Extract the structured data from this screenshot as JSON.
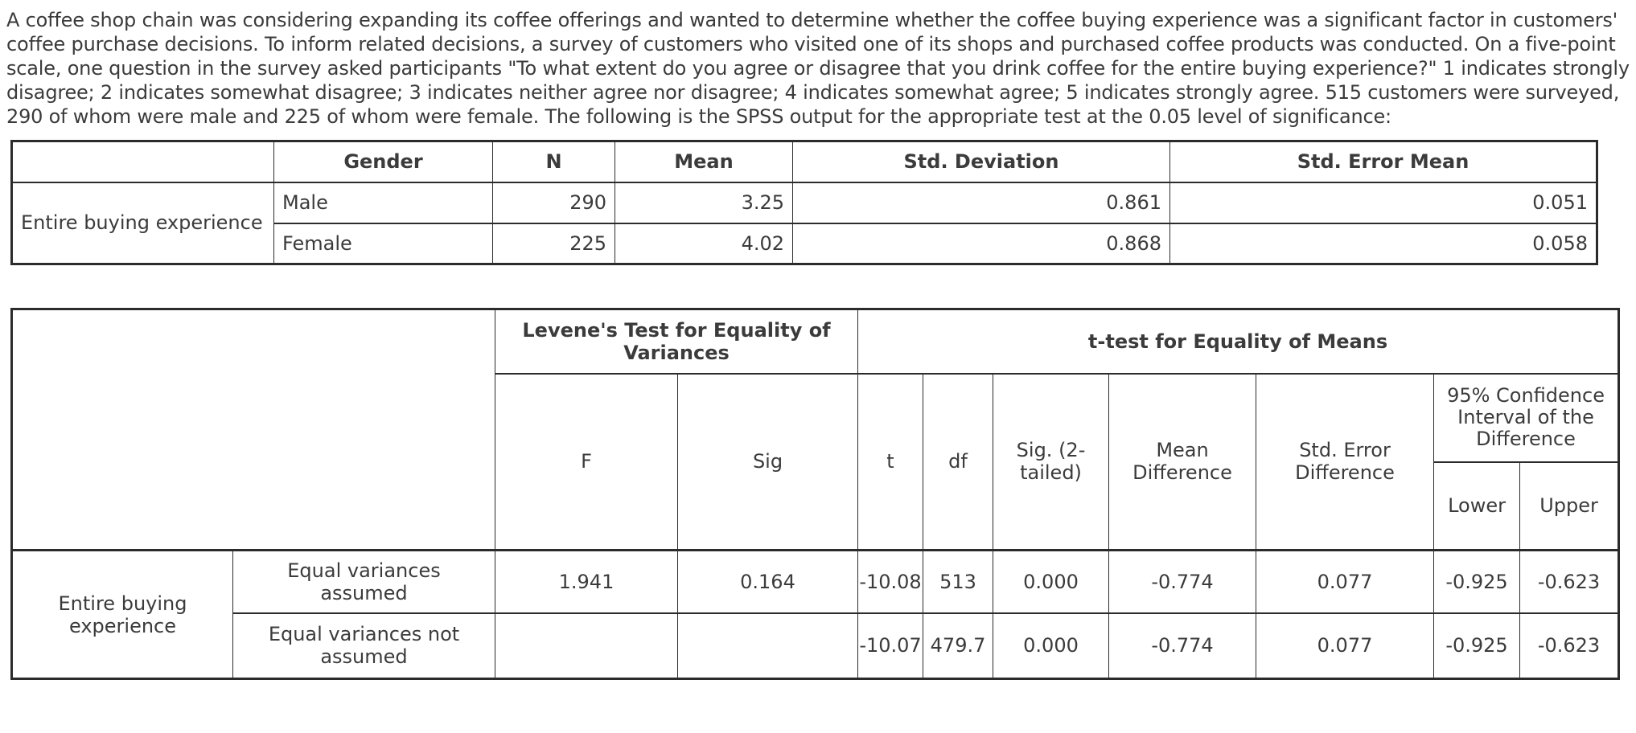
{
  "page": {
    "intro_text": "A coffee shop chain was considering expanding its coffee offerings and wanted to determine whether the coffee buying experience was a significant factor in customers' coffee purchase decisions. To inform related decisions, a survey of customers who visited one of its shops and purchased coffee products was conducted. On a five-point scale, one question in the survey asked participants \"To what extent do you agree or disagree that you drink coffee for the entire buying experience?\" 1 indicates strongly disagree; 2 indicates somewhat disagree; 3 indicates neither agree nor disagree; 4 indicates somewhat agree; 5 indicates strongly agree. 515 customers were surveyed, 290 of whom were male and 225 of whom were female. The following is the SPSS output for the appropriate test at the 0.05 level of significance:"
  },
  "group_stats_table": {
    "headers": {
      "blank": "",
      "gender": "Gender",
      "n": "N",
      "mean": "Mean",
      "std_deviation": "Std. Deviation",
      "std_error_mean": "Std. Error Mean"
    },
    "row_label": "Entire buying experience",
    "rows": [
      {
        "gender": "Male",
        "n": "290",
        "mean": "3.25",
        "std_deviation": "0.861",
        "std_error_mean": "0.051"
      },
      {
        "gender": "Female",
        "n": "225",
        "mean": "4.02",
        "std_deviation": "0.868",
        "std_error_mean": "0.058"
      }
    ]
  },
  "ttest_table": {
    "levene_header": "Levene's Test for Equality of Variances",
    "ttest_header": "t-test for Equality of Means",
    "sub_headers": {
      "f": "F",
      "sig": "Sig",
      "t": "t",
      "df": "df",
      "sig_2_tailed": "Sig. (2-tailed)",
      "mean_difference": "Mean Difference",
      "std_error_difference": "Std. Error Difference",
      "ci_95": "95% Confidence Interval of the Difference",
      "lower": "Lower",
      "upper": "Upper"
    },
    "row_label": "Entire buying experience",
    "rows": [
      {
        "label": "Equal variances assumed",
        "f": "1.941",
        "sig": "0.164",
        "t": "-10.08",
        "df": "513",
        "sig_2_tailed": "0.000",
        "mean_difference": "-0.774",
        "std_error_difference": "0.077",
        "lower": "-0.925",
        "upper": "-0.623"
      },
      {
        "label": "Equal variances not assumed",
        "f": "",
        "sig": "",
        "t": "-10.07",
        "df": "479.7",
        "sig_2_tailed": "0.000",
        "mean_difference": "-0.774",
        "std_error_difference": "0.077",
        "lower": "-0.925",
        "upper": "-0.623"
      }
    ]
  }
}
